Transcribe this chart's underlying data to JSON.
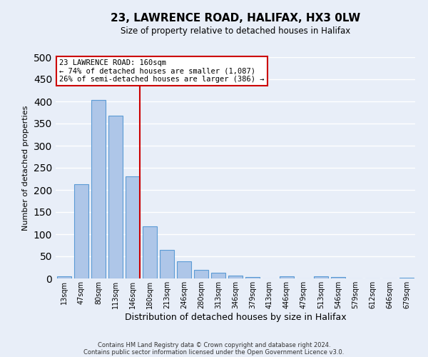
{
  "title": "23, LAWRENCE ROAD, HALIFAX, HX3 0LW",
  "subtitle": "Size of property relative to detached houses in Halifax",
  "xlabel": "Distribution of detached houses by size in Halifax",
  "ylabel": "Number of detached properties",
  "bar_labels": [
    "13sqm",
    "47sqm",
    "80sqm",
    "113sqm",
    "146sqm",
    "180sqm",
    "213sqm",
    "246sqm",
    "280sqm",
    "313sqm",
    "346sqm",
    "379sqm",
    "413sqm",
    "446sqm",
    "479sqm",
    "513sqm",
    "546sqm",
    "579sqm",
    "612sqm",
    "646sqm",
    "679sqm"
  ],
  "bar_values": [
    5,
    213,
    403,
    368,
    230,
    118,
    64,
    39,
    19,
    13,
    6,
    3,
    0,
    5,
    0,
    5,
    3,
    0,
    0,
    0,
    2
  ],
  "bar_color": "#aec6e8",
  "bar_edge_color": "#5b9bd5",
  "background_color": "#e8eef8",
  "grid_color": "#ffffff",
  "ylim": [
    0,
    500
  ],
  "yticks": [
    0,
    50,
    100,
    150,
    200,
    250,
    300,
    350,
    400,
    450,
    500
  ],
  "vline_x_index": 4,
  "vline_color": "#cc0000",
  "annotation_title": "23 LAWRENCE ROAD: 160sqm",
  "annotation_line1": "← 74% of detached houses are smaller (1,087)",
  "annotation_line2": "26% of semi-detached houses are larger (386) →",
  "annotation_box_color": "#ffffff",
  "annotation_box_edge_color": "#cc0000",
  "footer1": "Contains HM Land Registry data © Crown copyright and database right 2024.",
  "footer2": "Contains public sector information licensed under the Open Government Licence v3.0."
}
